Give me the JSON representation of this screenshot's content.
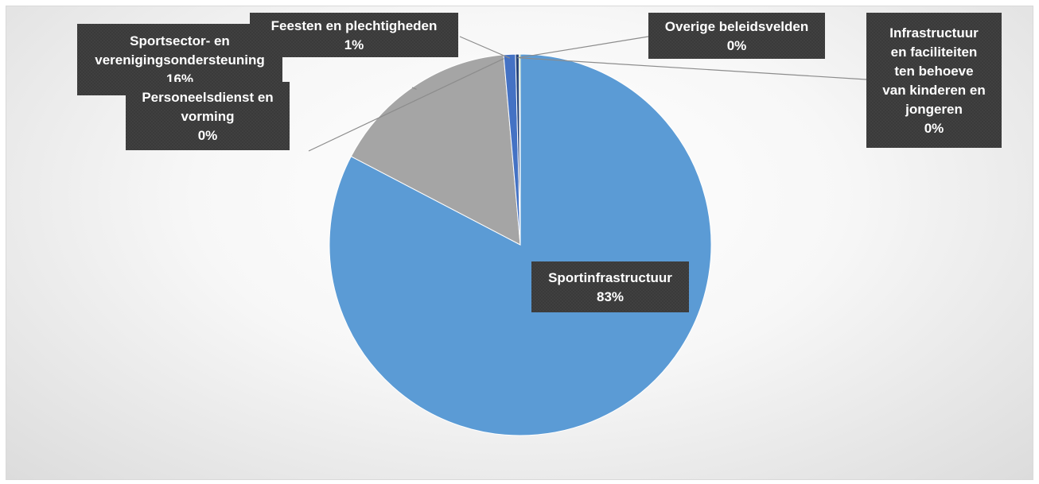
{
  "chart_data": {
    "type": "pie",
    "title": "",
    "slices": [
      {
        "label": "Sportinfrastructuur",
        "value": 83,
        "value_label": "83%",
        "color": "#5B9BD5"
      },
      {
        "label": "Sportsector- en verenigingsondersteuning",
        "value": 16,
        "value_label": "16%",
        "color": "#A5A5A5"
      },
      {
        "label": "Personeelsdienst en vorming",
        "value": 0,
        "value_label": "0%",
        "color": "#FFC000"
      },
      {
        "label": "Feesten en plechtigheden",
        "value": 1,
        "value_label": "1%",
        "color": "#4472C4"
      },
      {
        "label": "Overige beleidsvelden",
        "value": 0.3,
        "value_label": "0%",
        "color": "#264478"
      },
      {
        "label": "Infrastructuur en faciliteiten ten behoeve van kinderen en jongeren",
        "value": 0.1,
        "value_label": "0%",
        "color": "#70AD47"
      }
    ],
    "legend": "none",
    "label_style": "dark callout boxes with leader lines"
  }
}
